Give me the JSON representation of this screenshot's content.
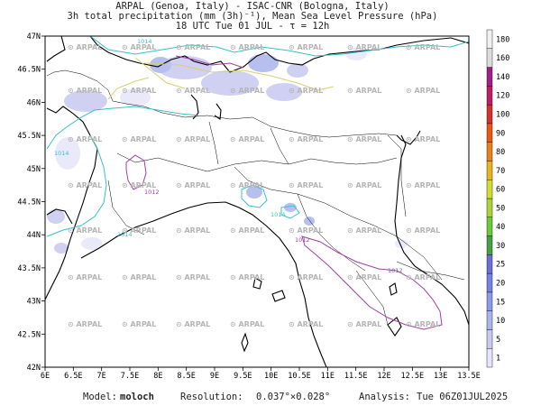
{
  "title": {
    "line1": "ARPAL (Genoa, Italy)  -  ISAC-CNR (Bologna, Italy)",
    "line2": "3h total precipitation (mm (3h)⁻¹), Mean Sea Level Pressure (hPa)",
    "line3": "18 UTC Tue 01 JUL  -  τ = 12h"
  },
  "axes": {
    "lat_labels": [
      "47N",
      "46.5N",
      "46N",
      "45.5N",
      "45N",
      "44.5N",
      "44N",
      "43.5N",
      "43N",
      "42.5N",
      "42N"
    ],
    "lon_labels": [
      "6E",
      "6.5E",
      "7E",
      "7.5E",
      "8E",
      "8.5E",
      "9E",
      "9.5E",
      "10E",
      "10.5E",
      "11E",
      "11.5E",
      "12E",
      "12.5E",
      "13E",
      "13.5E"
    ],
    "lat_range": [
      42,
      47
    ],
    "lon_range": [
      6,
      13.5
    ]
  },
  "colorbar": {
    "levels": [
      "1",
      "5",
      "10",
      "15",
      "20",
      "25",
      "30",
      "40",
      "50",
      "60",
      "70",
      "80",
      "90",
      "100",
      "120",
      "140",
      "160",
      "180"
    ],
    "colors": [
      "#e6e6fa",
      "#c8c8f0",
      "#aab4ec",
      "#8c9be6",
      "#7682e0",
      "#6e6ed2",
      "#46a046",
      "#6ec83c",
      "#aad23c",
      "#d2dc32",
      "#e6b41e",
      "#e6821e",
      "#e65a14",
      "#d23232",
      "#be1e64",
      "#a01e8c",
      "#dcdcdc",
      "#f0f0f0"
    ]
  },
  "watermark": "ARPAL",
  "isobars": [
    "1014",
    "1014",
    "1014",
    "1014",
    "1012",
    "1012",
    "1012"
  ],
  "footer": {
    "model_label": "Model:",
    "model_value": "moloch",
    "resolution_label": "Resolution:",
    "resolution_value": "0.037°×0.028°",
    "analysis_label": "Analysis:",
    "analysis_value": "Tue 06Z01JUL2025"
  }
}
